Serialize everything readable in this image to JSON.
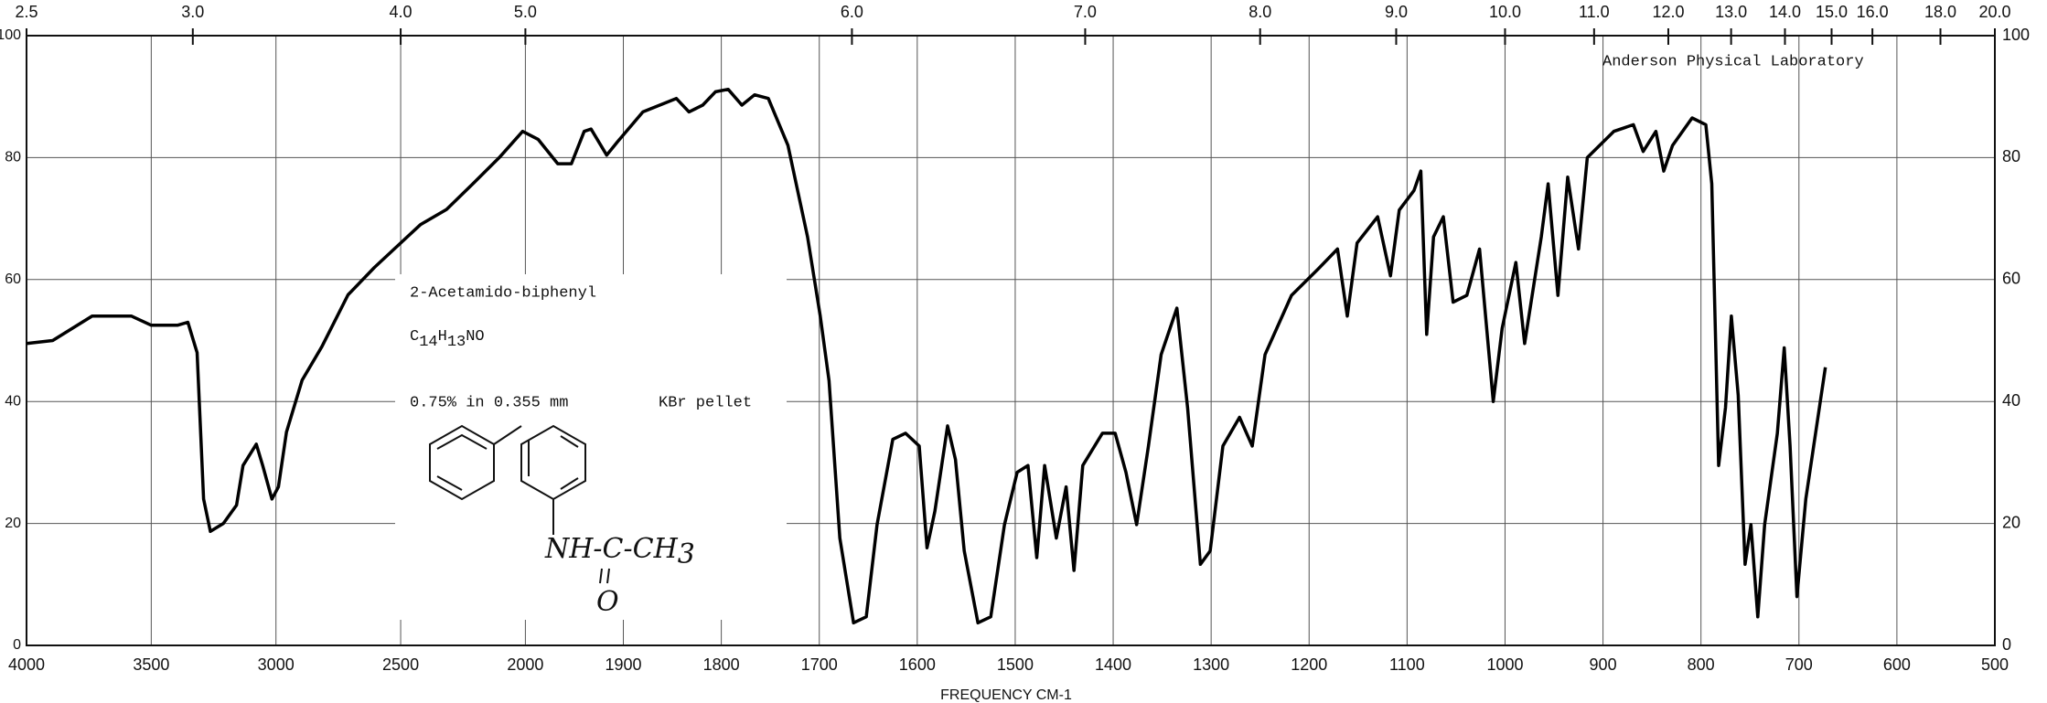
{
  "chart_data": {
    "type": "line",
    "xlabel": "FREQUENCY  CM-1",
    "lab": "Anderson Physical Laboratory",
    "compound": "2-Acetamido-biphenyl",
    "formula": "C14H13NO",
    "concentration": "0.75% in 0.355 mm",
    "medium": "KBr pellet",
    "structure_label": "NH-C-CH3",
    "structure_oxygen": "O",
    "color": "#000000",
    "grid": true,
    "x": [
      4000,
      3895,
      3737,
      3579,
      3500,
      3395,
      3353,
      3316,
      3290,
      3263,
      3211,
      3158,
      3132,
      3079,
      3053,
      3016,
      2990,
      2958,
      2895,
      2816,
      2711,
      2605,
      2526,
      2421,
      2316,
      2211,
      2105,
      2011,
      1987,
      1967,
      1953,
      1940,
      1933,
      1917,
      1906,
      1880,
      1846,
      1833,
      1819,
      1806,
      1793,
      1779,
      1766,
      1752,
      1732,
      1712,
      1699,
      1690,
      1679,
      1665,
      1652,
      1641,
      1625,
      1612,
      1598,
      1590,
      1582,
      1569,
      1561,
      1552,
      1538,
      1525,
      1511,
      1498,
      1487,
      1478,
      1470,
      1458,
      1448,
      1440,
      1431,
      1411,
      1398,
      1387,
      1376,
      1364,
      1351,
      1335,
      1324,
      1311,
      1301,
      1288,
      1271,
      1258,
      1245,
      1218,
      1191,
      1171,
      1161,
      1151,
      1130,
      1117,
      1108,
      1093,
      1086,
      1080,
      1073,
      1063,
      1053,
      1039,
      1026,
      1012,
      1003,
      989,
      980,
      963,
      956,
      946,
      936,
      925,
      916,
      889,
      869,
      859,
      846,
      838,
      829,
      809,
      795,
      789,
      782,
      775,
      769,
      762,
      755,
      749,
      742,
      735,
      722,
      715,
      709,
      702,
      693,
      673
    ],
    "values": [
      49.5,
      50,
      54,
      54,
      52.5,
      52.5,
      53,
      48,
      24,
      18.7,
      20,
      23,
      29.5,
      33,
      29.5,
      24,
      26,
      35,
      43.5,
      49,
      57.5,
      62,
      65,
      69,
      71.5,
      75.7,
      80,
      84.3,
      83,
      79,
      79,
      84.3,
      84.7,
      80.4,
      82.6,
      87.5,
      89.7,
      87.5,
      88.6,
      90.8,
      91.2,
      88.6,
      90.3,
      89.7,
      82,
      67,
      54,
      43.4,
      17.6,
      3.7,
      4.7,
      19.8,
      33.8,
      34.8,
      32.7,
      16,
      22,
      36,
      30.5,
      15.5,
      3.7,
      4.7,
      19.8,
      28.4,
      29.5,
      14.4,
      29.5,
      17.6,
      26,
      12.3,
      29.5,
      34.8,
      34.8,
      28.4,
      19.8,
      32.7,
      47.7,
      55.3,
      39,
      13.3,
      15.5,
      32.7,
      37.4,
      32.7,
      47.7,
      57.4,
      61.7,
      65,
      54,
      66,
      70.3,
      60.6,
      71.4,
      74.6,
      77.8,
      51,
      67,
      70.3,
      56.3,
      57.4,
      65,
      40,
      52,
      62.8,
      49.5,
      67,
      75.7,
      57.4,
      76.8,
      65,
      80,
      84.3,
      85.4,
      81,
      84.3,
      77.8,
      82,
      86.5,
      85.4,
      75.7,
      29.5,
      39,
      54,
      41,
      13.3,
      19.8,
      4.7,
      19.8,
      34.8,
      48.8,
      32.7,
      8,
      24,
      45.6
    ],
    "xlim": [
      4000,
      500
    ],
    "xticks": [
      4000,
      3500,
      3000,
      2500,
      2000,
      1900,
      1800,
      1700,
      1600,
      1500,
      1400,
      1300,
      1200,
      1100,
      1000,
      900,
      800,
      700,
      600,
      500
    ],
    "x2ticks": [
      2.5,
      {
        "value": 3,
        "label": "3.0"
      },
      {
        "value": 4,
        "label": "4.0"
      },
      {
        "value": 5,
        "label": "5.0"
      },
      {
        "value": 6,
        "label": "6.0"
      },
      {
        "value": 7,
        "label": "7.0"
      },
      {
        "value": 8,
        "label": "8.0"
      },
      {
        "value": 9,
        "label": "9.0"
      },
      {
        "value": 10,
        "label": "10.0"
      },
      {
        "value": 11,
        "label": "11.0"
      },
      {
        "value": 12,
        "label": "12.0"
      },
      {
        "value": 13,
        "label": "13.0"
      },
      {
        "value": 14,
        "label": "14.0"
      },
      {
        "value": 15,
        "label": "15.0"
      },
      {
        "value": 16,
        "label": "16.0"
      },
      {
        "value": 18,
        "label": "18.0"
      },
      {
        "value": 20,
        "label": "20.0"
      }
    ],
    "ylim": [
      0,
      100
    ],
    "yticks": [
      0,
      20,
      40,
      60,
      80,
      100
    ]
  }
}
